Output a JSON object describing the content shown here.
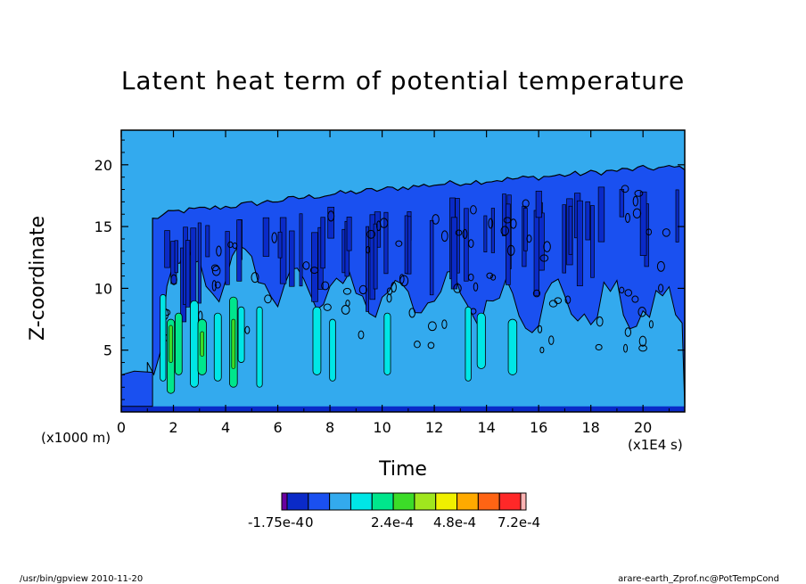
{
  "chart_data": {
    "type": "heatmap",
    "title": "Latent heat term of potential temperature",
    "xlabel": "Time",
    "ylabel": "Z-coordinate",
    "x_unit": "(x1E4 s)",
    "y_unit": "(x1000 m)",
    "x_ticks": [
      0,
      2,
      4,
      6,
      8,
      10,
      12,
      14,
      16,
      18,
      20
    ],
    "y_ticks": [
      5,
      10,
      15,
      20
    ],
    "xlim": [
      0,
      21.6
    ],
    "ylim": [
      0,
      22.8
    ],
    "background_level_color": "#33aaee",
    "colorbar": {
      "colors": [
        "#6a00a0",
        "#0a2ac8",
        "#1a50f0",
        "#33aaee",
        "#00e6e6",
        "#00e68c",
        "#3cdc28",
        "#a0e61e",
        "#f0f000",
        "#ffaa00",
        "#ff6414",
        "#ff2828",
        "#ffb4b4"
      ],
      "tick_labels": [
        "-1.75e-4",
        "0",
        "2.4e-4",
        "4.8e-4",
        "7.2e-4"
      ]
    },
    "tropopause_top": [
      {
        "x": 1.2,
        "z": 15.6
      },
      {
        "x": 2.0,
        "z": 16.2
      },
      {
        "x": 4.0,
        "z": 16.6
      },
      {
        "x": 8.0,
        "z": 17.6
      },
      {
        "x": 12.0,
        "z": 18.4
      },
      {
        "x": 16.0,
        "z": 19.0
      },
      {
        "x": 20.0,
        "z": 19.7
      },
      {
        "x": 21.6,
        "z": 19.8
      }
    ]
  },
  "footer": {
    "left": "/usr/bin/gpview  2010-11-20",
    "right": "arare-earth_Zprof.nc@PotTempCond"
  }
}
